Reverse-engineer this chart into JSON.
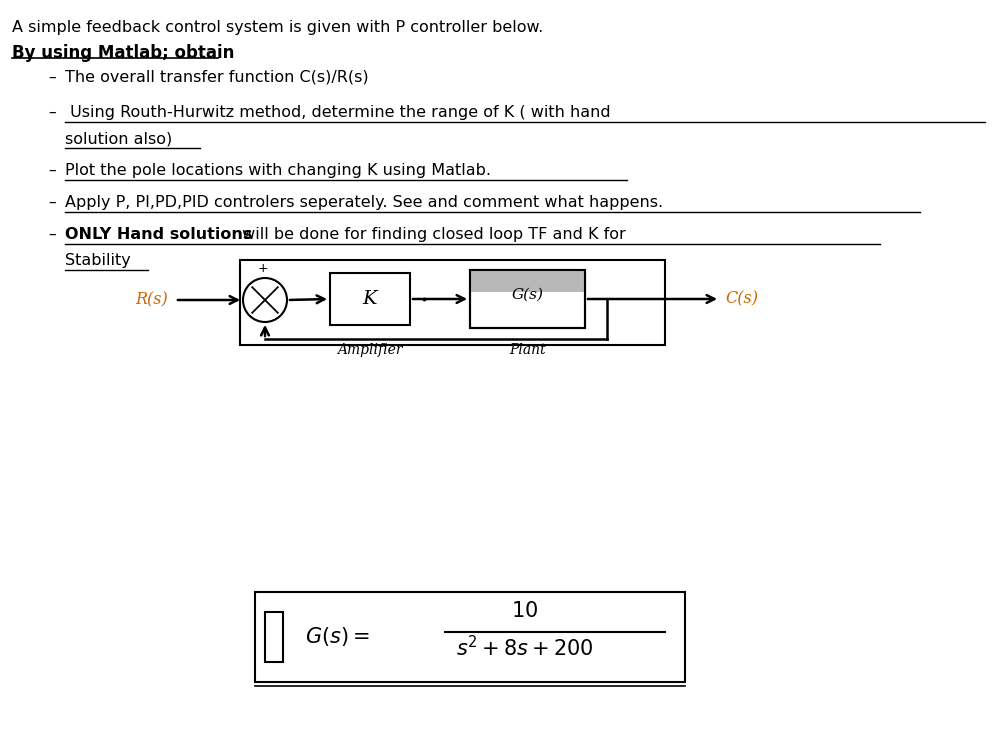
{
  "bg_color": "#ffffff",
  "text_color": "#000000",
  "title": "A simple feedback control system is given with P controller below.",
  "subtitle": "By using Matlab; obtain",
  "b1": "The overall transfer function C(s)/R(s)",
  "b2a": " Using Routh-Hurwitz method, determine the range of K ( with hand",
  "b2b": "solution also)",
  "b3": "Plot the pole locations with changing K using Matlab.",
  "b4": "Apply P, PI,PD,PID controlers seperately. See and comment what happens.",
  "b5a_bold": "ONLY Hand solutions",
  "b5a_rest": " will be done for finding closed loop TF and K for",
  "b5b": "Stability",
  "Rs": "R(s)",
  "Cs": "C(s)",
  "K_lbl": "K",
  "Gs_lbl": "G(s)",
  "amp_lbl": "Amplifier",
  "plant_lbl": "Plant",
  "orange": "#cc6600",
  "font_size_main": 13,
  "font_size_diagram": 12,
  "font_size_small": 11
}
